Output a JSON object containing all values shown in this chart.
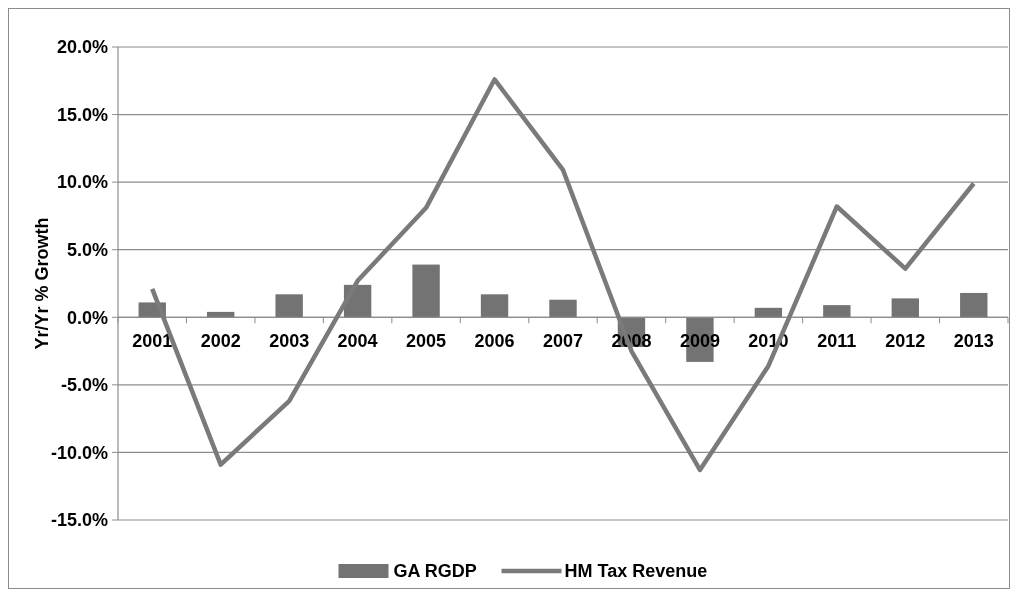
{
  "chart_data": {
    "type": "bar",
    "ylabel": "Yr/Yr % Growth",
    "categories": [
      "2001",
      "2002",
      "2003",
      "2004",
      "2005",
      "2006",
      "2007",
      "2008",
      "2009",
      "2010",
      "2011",
      "2012",
      "2013"
    ],
    "series": [
      {
        "name": "GA RGDP",
        "color": "#737373",
        "values": [
          1.1,
          0.4,
          1.7,
          2.4,
          3.9,
          1.7,
          1.3,
          -2.2,
          -3.3,
          0.7,
          0.9,
          1.4,
          1.8
        ]
      },
      {
        "name": "HM Tax Revenue",
        "type": "line",
        "color": "#7a7a7a",
        "values": [
          2.1,
          -10.9,
          -6.2,
          2.7,
          8.1,
          17.6,
          10.9,
          -2.5,
          -11.3,
          -3.6,
          8.2,
          3.6,
          9.9
        ]
      }
    ],
    "ylim": [
      -15,
      20
    ],
    "yticks": [
      {
        "value": -15,
        "label": "-15.0%"
      },
      {
        "value": -10,
        "label": "-10.0%"
      },
      {
        "value": -5,
        "label": "-5.0%"
      },
      {
        "value": 0,
        "label": "0.0%"
      },
      {
        "value": 5,
        "label": "5.0%"
      },
      {
        "value": 10,
        "label": "10.0%"
      },
      {
        "value": 15,
        "label": "15.0%"
      },
      {
        "value": 20,
        "label": "20.0%"
      }
    ],
    "grid": "y",
    "legend": "bottom",
    "marker": "none",
    "line_style": "solid"
  }
}
